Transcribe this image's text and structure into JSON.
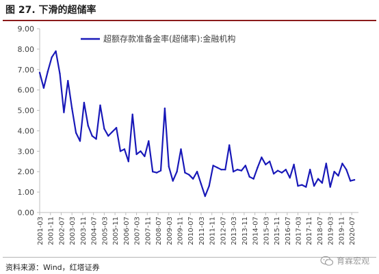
{
  "figure": {
    "title": "图 27. 下滑的超储率",
    "source": "资料来源：Wind，红塔证券",
    "watermark": "育霖宏观"
  },
  "colors": {
    "series": "#1818b8",
    "rule": "#8b1a1a",
    "axis": "#bdbdbd",
    "text": "#404040"
  },
  "icons": {
    "watermark": "wechat-icon"
  },
  "chart_data": {
    "type": "line",
    "title": "",
    "xlabel": "",
    "ylabel": "",
    "ylim": [
      0,
      9
    ],
    "yticks": [
      "0.00",
      "1.00",
      "2.00",
      "3.00",
      "4.00",
      "5.00",
      "6.00",
      "7.00",
      "8.00",
      "9.00"
    ],
    "xtick_labels": [
      "2001-03",
      "2001-11",
      "2002-07",
      "2003-03",
      "2003-11",
      "2004-07",
      "2005-03",
      "2005-11",
      "2006-07",
      "2007-03",
      "2007-11",
      "2008-07",
      "2009-03",
      "2009-11",
      "2010-07",
      "2011-03",
      "2011-11",
      "2012-07",
      "2013-03",
      "2013-11",
      "2014-07",
      "2015-03",
      "2015-11",
      "2016-07",
      "2017-03",
      "2017-11",
      "2018-07",
      "2019-03",
      "2019-11",
      "2020-07"
    ],
    "grid": false,
    "legend_position": "top-right",
    "series": [
      {
        "name": "超额存款准备金率(超储率):金融机构",
        "color": "#1818b8",
        "x": [
          "2001-03",
          "2001-06",
          "2001-09",
          "2001-12",
          "2002-03",
          "2002-06",
          "2002-09",
          "2002-12",
          "2003-03",
          "2003-06",
          "2003-09",
          "2003-12",
          "2004-03",
          "2004-06",
          "2004-09",
          "2004-12",
          "2005-03",
          "2005-06",
          "2005-09",
          "2005-12",
          "2006-03",
          "2006-06",
          "2006-09",
          "2006-12",
          "2007-03",
          "2007-06",
          "2007-09",
          "2007-12",
          "2008-03",
          "2008-06",
          "2008-09",
          "2008-12",
          "2009-03",
          "2009-06",
          "2009-09",
          "2009-12",
          "2010-03",
          "2010-06",
          "2010-09",
          "2010-12",
          "2011-03",
          "2011-06",
          "2011-09",
          "2011-12",
          "2012-03",
          "2012-06",
          "2012-09",
          "2012-12",
          "2013-03",
          "2013-06",
          "2013-09",
          "2013-12",
          "2014-03",
          "2014-06",
          "2014-09",
          "2014-12",
          "2015-03",
          "2015-06",
          "2015-09",
          "2015-12",
          "2016-03",
          "2016-06",
          "2016-09",
          "2016-12",
          "2017-03",
          "2017-06",
          "2017-09",
          "2017-12",
          "2018-03",
          "2018-06",
          "2018-09",
          "2018-12",
          "2019-03",
          "2019-06",
          "2019-09",
          "2019-12",
          "2020-03",
          "2020-06",
          "2020-09"
        ],
        "values": [
          6.85,
          6.1,
          6.9,
          7.6,
          7.9,
          6.8,
          4.9,
          6.45,
          5.1,
          3.9,
          3.5,
          5.38,
          4.25,
          3.75,
          3.6,
          5.25,
          4.1,
          3.75,
          3.95,
          4.15,
          3.0,
          3.1,
          2.5,
          4.8,
          2.85,
          3.0,
          2.75,
          3.5,
          2.0,
          1.95,
          2.05,
          5.1,
          2.25,
          1.55,
          2.0,
          3.1,
          1.95,
          1.85,
          1.65,
          2.0,
          1.4,
          0.8,
          1.3,
          2.3,
          2.2,
          2.1,
          2.1,
          3.3,
          2.0,
          2.1,
          2.05,
          2.3,
          1.75,
          1.65,
          2.2,
          2.7,
          2.35,
          2.5,
          1.9,
          2.05,
          1.95,
          2.1,
          1.7,
          2.35,
          1.3,
          1.35,
          1.25,
          2.1,
          1.3,
          1.65,
          1.45,
          2.4,
          1.25,
          2.0,
          1.8,
          2.4,
          2.1,
          1.55,
          1.6
        ]
      }
    ]
  }
}
